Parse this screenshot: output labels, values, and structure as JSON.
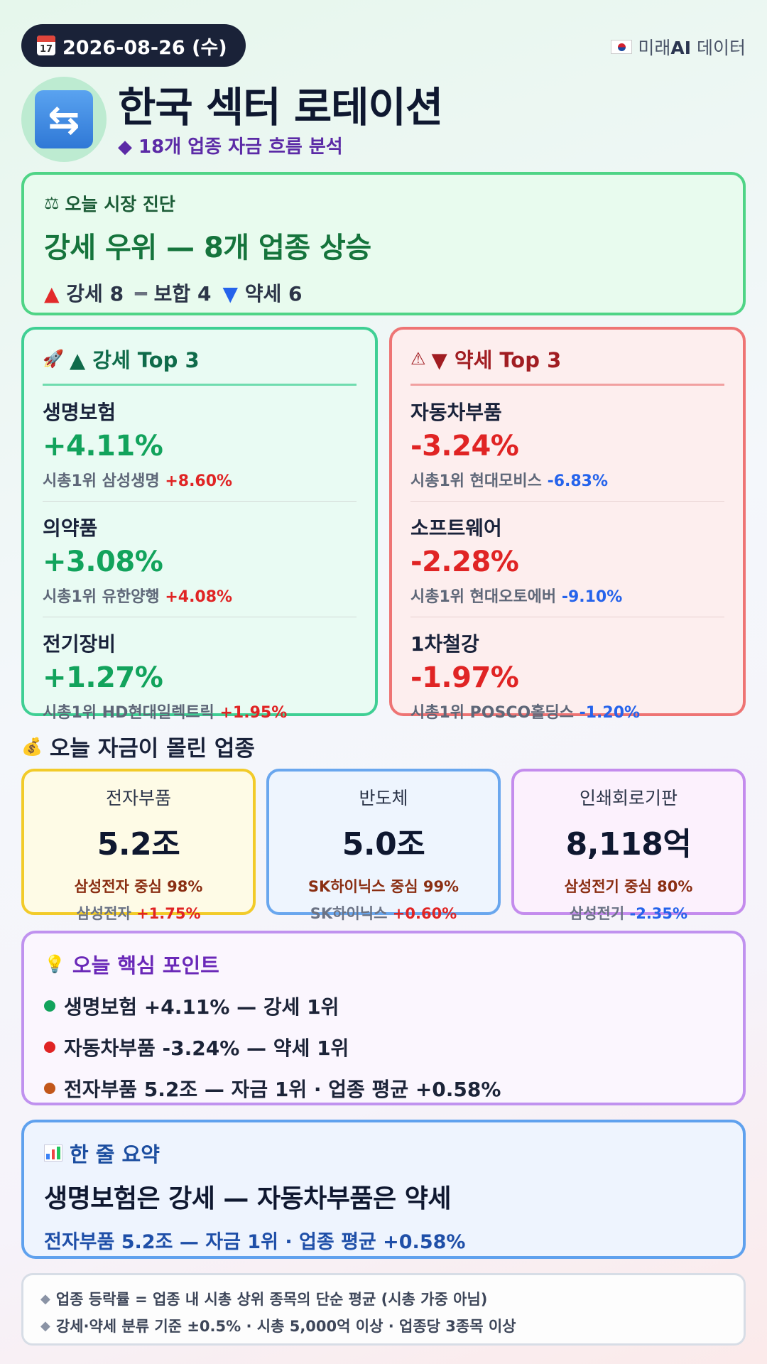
{
  "header": {
    "date": "2026-08-26 (수)",
    "calendar_day": "17",
    "source_prefix": "미래",
    "source_bold": "AI",
    "source_suffix": " 데이터",
    "title": "한국 섹터 로테이션",
    "subtitle": "18개 업종 자금 흐름 분석"
  },
  "diagnosis": {
    "label": "오늘 시장 진단",
    "headline": "강세 우위 — 8개 업종 상승",
    "strong_label": "강세 8",
    "neutral_label": "보합 4",
    "weak_label": "약세 6"
  },
  "strong_top3": {
    "title": "▲ 강세 Top 3",
    "items": [
      {
        "name": "생명보험",
        "change": "+4.11%",
        "lead_prefix": "시총1위 삼성생명",
        "lead_change": "+8.60%"
      },
      {
        "name": "의약품",
        "change": "+3.08%",
        "lead_prefix": "시총1위 유한양행",
        "lead_change": "+4.08%"
      },
      {
        "name": "전기장비",
        "change": "+1.27%",
        "lead_prefix": "시총1위 HD현대일렉트릭",
        "lead_change": "+1.95%"
      }
    ]
  },
  "weak_top3": {
    "title": "▼ 약세 Top 3",
    "items": [
      {
        "name": "자동차부품",
        "change": "-3.24%",
        "lead_prefix": "시총1위 현대모비스",
        "lead_change": "-6.83%"
      },
      {
        "name": "소프트웨어",
        "change": "-2.28%",
        "lead_prefix": "시총1위 현대오토에버",
        "lead_change": "-9.10%"
      },
      {
        "name": "1차철강",
        "change": "-1.97%",
        "lead_prefix": "시총1위 POSCO홀딩스",
        "lead_change": "-1.20%"
      }
    ]
  },
  "money": {
    "title": "오늘 자금이 몰린 업종",
    "cards": [
      {
        "name": "전자부품",
        "amount": "5.2조",
        "concentration": "삼성전자 중심 98%",
        "lead_prefix": "삼성전자",
        "lead_change": "+1.75%"
      },
      {
        "name": "반도체",
        "amount": "5.0조",
        "concentration": "SK하이닉스 중심 99%",
        "lead_prefix": "SK하이닉스",
        "lead_change": "+0.60%"
      },
      {
        "name": "인쇄회로기판",
        "amount": "8,118억",
        "concentration": "삼성전기 중심 80%",
        "lead_prefix": "삼성전기",
        "lead_change": "-2.35%"
      }
    ]
  },
  "key_points": {
    "title": "오늘 핵심 포인트",
    "items": [
      {
        "text": "생명보험 +4.11% — 강세 1위",
        "color": "#12a35c"
      },
      {
        "text": "자동차부품 -3.24% — 약세 1위",
        "color": "#e02424"
      },
      {
        "text": "전자부품 5.2조 — 자금 1위 · 업종 평균 +0.58%",
        "color": "#c2571a"
      }
    ]
  },
  "summary": {
    "title": "한 줄 요약",
    "headline": "생명보험은 강세 — 자동차부품은 약세",
    "sub": "전자부품 5.2조 — 자금 1위 · 업종 평균 +0.58%"
  },
  "notes": [
    "업종 등락률 = 업종 내 시총 상위 종목의 단순 평균 (시총 가중 아님)",
    "강세·약세 분류 기준 ±0.5% · 시총 5,000억 이상 · 업종당 3종목 이상"
  ],
  "colors": {
    "positive": "#e02424",
    "negative": "#2563eb",
    "strong_accent": "#12a35c"
  }
}
